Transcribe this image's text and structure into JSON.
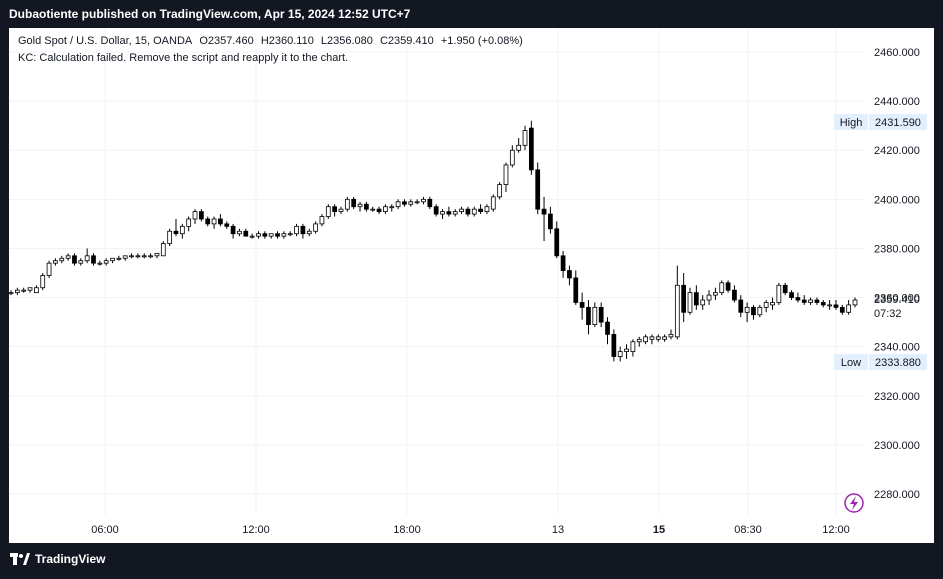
{
  "header": {
    "published_text": "Dubaotiente published on TradingView.com, Apr 15, 2024 12:52 UTC+7"
  },
  "legend": {
    "symbol": "Gold Spot / U.S. Dollar, 15, OANDA",
    "open": "O2357.460",
    "high": "H2360.110",
    "low": "L2356.080",
    "close": "C2359.410",
    "change": "+1.950 (+0.08%)",
    "indicator_error": "KC: Calculation failed. Remove the script and reapply it to the chart."
  },
  "price_axis": {
    "ticks": [
      "2460.000",
      "2440.000",
      "2420.000",
      "2400.000",
      "2380.000",
      "2360.000",
      "2340.000",
      "2320.000",
      "2300.000",
      "2280.000"
    ],
    "high_label": "High",
    "high_value": "2431.590",
    "low_label": "Low",
    "low_value": "2333.880",
    "last_price": "2359.410",
    "countdown": "07:32"
  },
  "time_axis": {
    "ticks": [
      {
        "label": "06:00",
        "bold": false
      },
      {
        "label": "12:00",
        "bold": false
      },
      {
        "label": "18:00",
        "bold": false
      },
      {
        "label": "13",
        "bold": false
      },
      {
        "label": "15",
        "bold": true
      },
      {
        "label": "08:30",
        "bold": false
      },
      {
        "label": "12:00",
        "bold": false
      }
    ]
  },
  "footer": {
    "brand": "TradingView"
  },
  "colors": {
    "bull_fill": "#ffffff",
    "bear_fill": "#000000",
    "candle_border": "#000000",
    "grid": "#f0f3fa",
    "axis_text": "#131722",
    "label_bg": "#e3effd",
    "lightning": "#9c27b0"
  },
  "chart_data": {
    "type": "candlestick",
    "title": "Gold Spot / U.S. Dollar, 15, OANDA",
    "ylim": [
      2270,
      2470
    ],
    "ohlc": [
      [
        2362,
        2363,
        2361,
        2362
      ],
      [
        2362,
        2364,
        2361,
        2363
      ],
      [
        2363,
        2364,
        2362,
        2363
      ],
      [
        2363,
        2364,
        2362,
        2364
      ],
      [
        2362,
        2365,
        2362,
        2364
      ],
      [
        2364,
        2370,
        2363,
        2369
      ],
      [
        2369,
        2375,
        2368,
        2374
      ],
      [
        2374,
        2376,
        2373,
        2375
      ],
      [
        2375,
        2377,
        2374,
        2376
      ],
      [
        2376,
        2378,
        2375,
        2377
      ],
      [
        2377,
        2378,
        2373,
        2374
      ],
      [
        2374,
        2376,
        2373,
        2375
      ],
      [
        2375,
        2380,
        2374,
        2377
      ],
      [
        2377,
        2378,
        2373,
        2374
      ],
      [
        2374,
        2375,
        2373,
        2374
      ],
      [
        2374,
        2376,
        2373,
        2375
      ],
      [
        2375,
        2376,
        2374,
        2376
      ],
      [
        2376,
        2377,
        2375,
        2376
      ],
      [
        2376,
        2377,
        2375,
        2377
      ],
      [
        2377,
        2378,
        2376,
        2377
      ],
      [
        2377,
        2378,
        2376,
        2377
      ],
      [
        2377,
        2378,
        2376,
        2377
      ],
      [
        2377,
        2378,
        2376,
        2377
      ],
      [
        2377,
        2378,
        2376,
        2378
      ],
      [
        2377,
        2383,
        2377,
        2382
      ],
      [
        2382,
        2388,
        2381,
        2387
      ],
      [
        2387,
        2392,
        2385,
        2386
      ],
      [
        2386,
        2390,
        2384,
        2389
      ],
      [
        2389,
        2393,
        2387,
        2392
      ],
      [
        2392,
        2396,
        2390,
        2395
      ],
      [
        2395,
        2396,
        2391,
        2392
      ],
      [
        2392,
        2393,
        2389,
        2390
      ],
      [
        2390,
        2393,
        2388,
        2392
      ],
      [
        2392,
        2394,
        2389,
        2390
      ],
      [
        2390,
        2391,
        2388,
        2389
      ],
      [
        2389,
        2390,
        2384,
        2386
      ],
      [
        2386,
        2388,
        2385,
        2387
      ],
      [
        2387,
        2388,
        2385,
        2385
      ],
      [
        2385,
        2386,
        2384,
        2385
      ],
      [
        2385,
        2387,
        2384,
        2386
      ],
      [
        2386,
        2387,
        2384,
        2385
      ],
      [
        2385,
        2386,
        2384,
        2386
      ],
      [
        2386,
        2387,
        2384,
        2385
      ],
      [
        2385,
        2387,
        2384,
        2386
      ],
      [
        2386,
        2387,
        2385,
        2386
      ],
      [
        2386,
        2390,
        2385,
        2389
      ],
      [
        2389,
        2390,
        2384,
        2386
      ],
      [
        2386,
        2388,
        2385,
        2387
      ],
      [
        2387,
        2391,
        2386,
        2390
      ],
      [
        2390,
        2394,
        2389,
        2393
      ],
      [
        2393,
        2398,
        2392,
        2397
      ],
      [
        2397,
        2398,
        2393,
        2395
      ],
      [
        2395,
        2397,
        2394,
        2396
      ],
      [
        2396,
        2401,
        2395,
        2400
      ],
      [
        2400,
        2401,
        2396,
        2397
      ],
      [
        2397,
        2399,
        2395,
        2398
      ],
      [
        2398,
        2399,
        2395,
        2396
      ],
      [
        2396,
        2397,
        2395,
        2396
      ],
      [
        2396,
        2397,
        2394,
        2395
      ],
      [
        2395,
        2398,
        2394,
        2397
      ],
      [
        2397,
        2398,
        2395,
        2397
      ],
      [
        2397,
        2400,
        2396,
        2399
      ],
      [
        2399,
        2400,
        2397,
        2398
      ],
      [
        2398,
        2400,
        2397,
        2399
      ],
      [
        2399,
        2400,
        2398,
        2399
      ],
      [
        2399,
        2401,
        2398,
        2400
      ],
      [
        2400,
        2401,
        2396,
        2397
      ],
      [
        2397,
        2398,
        2393,
        2394
      ],
      [
        2394,
        2396,
        2392,
        2395
      ],
      [
        2395,
        2397,
        2393,
        2394
      ],
      [
        2394,
        2396,
        2393,
        2395
      ],
      [
        2395,
        2397,
        2394,
        2396
      ],
      [
        2396,
        2397,
        2393,
        2394
      ],
      [
        2394,
        2397,
        2393,
        2396
      ],
      [
        2396,
        2398,
        2394,
        2395
      ],
      [
        2395,
        2398,
        2394,
        2397
      ],
      [
        2396,
        2402,
        2395,
        2401
      ],
      [
        2401,
        2407,
        2400,
        2406
      ],
      [
        2406,
        2415,
        2403,
        2414
      ],
      [
        2414,
        2422,
        2413,
        2420
      ],
      [
        2420,
        2425,
        2419,
        2422
      ],
      [
        2422,
        2430,
        2420,
        2428
      ],
      [
        2429,
        2432,
        2410,
        2412
      ],
      [
        2412,
        2415,
        2394,
        2396
      ],
      [
        2396,
        2401,
        2383,
        2394
      ],
      [
        2394,
        2397,
        2386,
        2388
      ],
      [
        2388,
        2391,
        2376,
        2377
      ],
      [
        2377,
        2379,
        2368,
        2371
      ],
      [
        2371,
        2373,
        2365,
        2368
      ],
      [
        2368,
        2371,
        2357,
        2358
      ],
      [
        2358,
        2362,
        2351,
        2356
      ],
      [
        2356,
        2359,
        2345,
        2349
      ],
      [
        2349,
        2358,
        2348,
        2356
      ],
      [
        2356,
        2358,
        2348,
        2350
      ],
      [
        2350,
        2352,
        2341,
        2345
      ],
      [
        2345,
        2347,
        2334,
        2336
      ],
      [
        2336,
        2340,
        2334,
        2338
      ],
      [
        2338,
        2341,
        2335,
        2339
      ],
      [
        2338,
        2343,
        2336,
        2342
      ],
      [
        2342,
        2344,
        2340,
        2343
      ],
      [
        2342,
        2345,
        2341,
        2344
      ],
      [
        2343,
        2345,
        2341,
        2344
      ],
      [
        2343,
        2345,
        2342,
        2344
      ],
      [
        2343,
        2345,
        2342,
        2344
      ],
      [
        2344,
        2347,
        2343,
        2345
      ],
      [
        2344,
        2373,
        2343,
        2365
      ],
      [
        2365,
        2370,
        2350,
        2354
      ],
      [
        2354,
        2364,
        2353,
        2362
      ],
      [
        2362,
        2365,
        2355,
        2357
      ],
      [
        2357,
        2361,
        2355,
        2359
      ],
      [
        2359,
        2363,
        2357,
        2361
      ],
      [
        2361,
        2364,
        2359,
        2362
      ],
      [
        2362,
        2367,
        2361,
        2366
      ],
      [
        2366,
        2367,
        2362,
        2363
      ],
      [
        2363,
        2365,
        2358,
        2359
      ],
      [
        2359,
        2361,
        2352,
        2354
      ],
      [
        2354,
        2358,
        2350,
        2356
      ],
      [
        2356,
        2357,
        2351,
        2353
      ],
      [
        2353,
        2357,
        2352,
        2356
      ],
      [
        2356,
        2359,
        2354,
        2358
      ],
      [
        2357,
        2360,
        2355,
        2358
      ],
      [
        2358,
        2366,
        2357,
        2365
      ],
      [
        2365,
        2366,
        2361,
        2362
      ],
      [
        2362,
        2363,
        2359,
        2360
      ],
      [
        2360,
        2362,
        2358,
        2359
      ],
      [
        2359,
        2361,
        2357,
        2358
      ],
      [
        2358,
        2360,
        2357,
        2359
      ],
      [
        2359,
        2360,
        2357,
        2358
      ],
      [
        2358,
        2359,
        2356,
        2357
      ],
      [
        2357,
        2359,
        2355,
        2357
      ],
      [
        2357,
        2359,
        2355,
        2356
      ],
      [
        2356,
        2357,
        2353,
        2354
      ],
      [
        2354,
        2359,
        2353,
        2357
      ],
      [
        2357,
        2360,
        2356,
        2359
      ]
    ]
  }
}
